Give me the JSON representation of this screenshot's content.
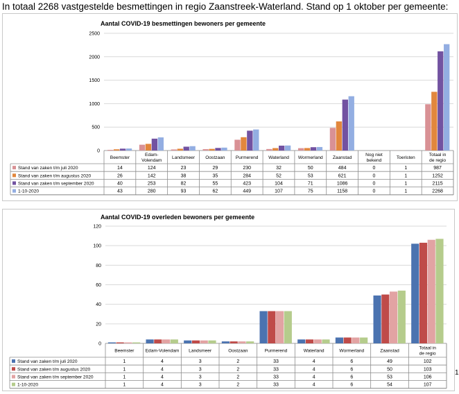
{
  "headline": "In totaal 2268 vastgestelde besmettingen in regio Zaanstreek-Waterland. Stand op 1 oktober per gemeente:",
  "stray_mark": "1",
  "chart_data": [
    {
      "type": "bar",
      "title": "Aantal COVID-19  besmettingen bewoners per gemeente",
      "categories": [
        "Beemster",
        "Edam-Volendam",
        "Landsmeer",
        "Oostzaan",
        "Purmerend",
        "Waterland",
        "Wormerland",
        "Zaanstad",
        "Nog niet bekend",
        "Toeristen",
        "Totaal in de regio"
      ],
      "ylim": [
        0,
        2500
      ],
      "yticks": [
        0,
        500,
        1000,
        1500,
        2000,
        2500
      ],
      "series": [
        {
          "name": "Stand van zaken t/m juli 2020",
          "color": "#d99195",
          "values": [
            14,
            124,
            23,
            29,
            230,
            32,
            50,
            484,
            0,
            1,
            987
          ]
        },
        {
          "name": "Stand van zaken t/m augustus 2020",
          "color": "#e2873d",
          "values": [
            26,
            142,
            38,
            35,
            284,
            52,
            53,
            621,
            0,
            1,
            1252
          ]
        },
        {
          "name": "Stand van zaken t/m september 2020",
          "color": "#7252a1",
          "values": [
            40,
            253,
            82,
            55,
            423,
            104,
            71,
            1086,
            0,
            1,
            2115
          ]
        },
        {
          "name": "1-10-2020",
          "color": "#93aee2",
          "values": [
            43,
            280,
            93,
            62,
            449,
            107,
            75,
            1158,
            0,
            1,
            2268
          ]
        }
      ]
    },
    {
      "type": "bar",
      "title": "Aantal COVID-19  overleden bewoners per gemeente",
      "categories": [
        "Beemster",
        "Edam-Volendam",
        "Landsmeer",
        "Oostzaan",
        "Purmerend",
        "Waterland",
        "Wormerland",
        "Zaanstad",
        "Totaal in de regio"
      ],
      "ylim": [
        0,
        120
      ],
      "yticks": [
        0,
        20,
        40,
        60,
        80,
        100,
        120
      ],
      "series": [
        {
          "name": "Stand van zaken t/m juli 2020",
          "color": "#4b73b0",
          "values": [
            1,
            4,
            3,
            2,
            33,
            4,
            6,
            49,
            102
          ]
        },
        {
          "name": "Stand van zaken t/m augustus 2020",
          "color": "#bf4b49",
          "values": [
            1,
            4,
            3,
            2,
            33,
            4,
            6,
            50,
            103
          ]
        },
        {
          "name": "Stand van zaken t/m september 2020",
          "color": "#e2a3a3",
          "values": [
            1,
            4,
            3,
            2,
            33,
            4,
            6,
            53,
            106
          ]
        },
        {
          "name": "1-10-2020",
          "color": "#b5cc8c",
          "values": [
            1,
            4,
            3,
            2,
            33,
            4,
            6,
            54,
            107
          ]
        }
      ]
    }
  ]
}
